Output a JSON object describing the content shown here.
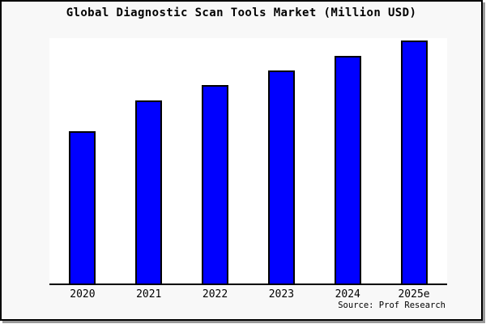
{
  "title": "Global Diagnostic Scan Tools Market (Million USD)",
  "source_note": "Source: Prof Research",
  "window": {
    "background": "#f8f8f8",
    "plot_background": "#ffffff",
    "border_color": "#000000",
    "shadow_color": "#999999"
  },
  "chart_data": {
    "type": "bar",
    "title": "Global Diagnostic Scan Tools Market (Million USD)",
    "categories": [
      "2020",
      "2021",
      "2022",
      "2023",
      "2024",
      "2025e"
    ],
    "values": [
      62.7,
      75.3,
      81.7,
      87.7,
      93.7,
      100
    ],
    "value_note": "no y-axis, gridlines or data labels are shown in the image; values estimated from bar heights normalized to 2025e = 100",
    "xlabel": "",
    "ylabel": "",
    "ylim": [
      0,
      101
    ],
    "grid": false,
    "legend": false,
    "y_axis_visible": false,
    "x_axis_visible": true,
    "bar_color": "#0000ff",
    "bar_border_color": "#000000",
    "source_note": "Source: Prof Research"
  }
}
